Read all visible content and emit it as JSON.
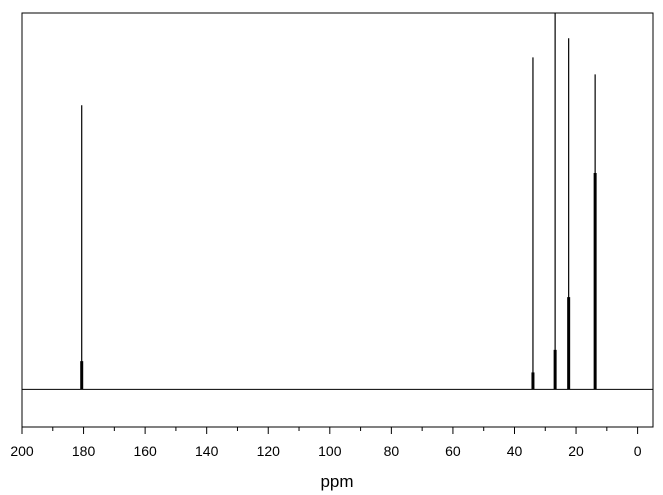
{
  "chart_data": {
    "type": "line",
    "title": "",
    "xlabel": "ppm",
    "ylabel": "",
    "x_reversed": true,
    "xlim": [
      200,
      -5
    ],
    "ylim": [
      -0.1,
      1.0
    ],
    "grid": false,
    "legend": "none",
    "x_ticks": [
      200,
      180,
      160,
      140,
      120,
      100,
      80,
      60,
      40,
      20,
      0
    ],
    "x_minor_step": 10,
    "baseline": 0,
    "peaks": [
      {
        "x": 180.6,
        "height": 0.755,
        "shoulder": 0.075
      },
      {
        "x": 34.0,
        "height": 0.882,
        "shoulder": 0.045
      },
      {
        "x": 26.8,
        "height": 1.0,
        "shoulder": 0.105
      },
      {
        "x": 22.4,
        "height": 0.933,
        "shoulder": 0.245
      },
      {
        "x": 13.8,
        "height": 0.837,
        "shoulder": 0.575
      }
    ],
    "colors": {
      "line": "#000000",
      "frame": "#000000"
    }
  }
}
